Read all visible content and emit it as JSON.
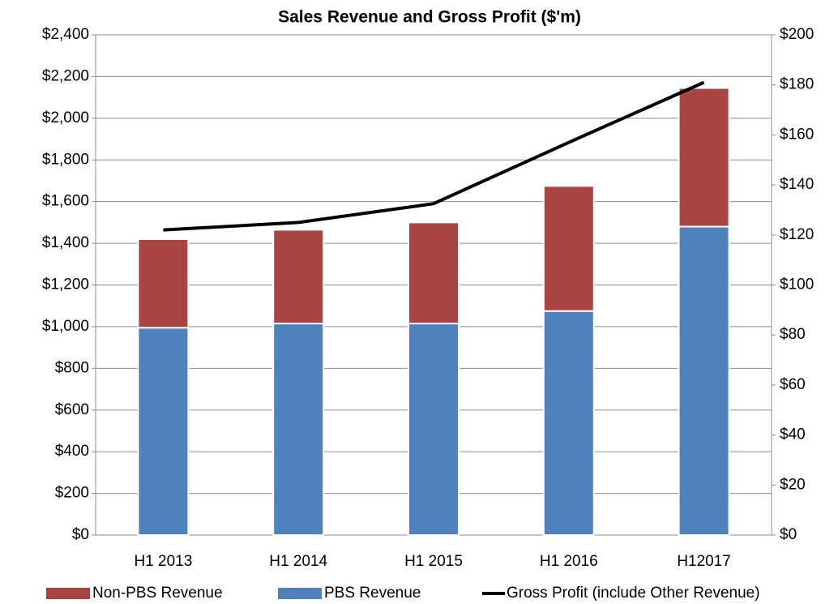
{
  "chart_data": {
    "type": "bar",
    "title": "Sales Revenue and Gross Profit ($'m)",
    "categories": [
      "H1 2013",
      "H1 2014",
      "H1 2015",
      "H1 2016",
      "H12017"
    ],
    "series": [
      {
        "name": "Non-PBS Revenue",
        "color": "#a84543",
        "values": [
          425,
          450,
          485,
          600,
          665
        ]
      },
      {
        "name": "PBS Revenue",
        "color": "#4f81bd",
        "values": [
          995,
          1015,
          1015,
          1075,
          1480
        ]
      },
      {
        "name": "Gross Profit (include Other Revenue)",
        "color": "#000000",
        "type": "line",
        "axis": "y2",
        "values": [
          122,
          125,
          132.5,
          157,
          181
        ]
      }
    ],
    "ylim": [
      0,
      2400
    ],
    "yticks": [
      {
        "value": 0,
        "label": "$0"
      },
      {
        "value": 200,
        "label": "$200"
      },
      {
        "value": 400,
        "label": "$400"
      },
      {
        "value": 600,
        "label": "$600"
      },
      {
        "value": 800,
        "label": "$800"
      },
      {
        "value": 1000,
        "label": "$1,000"
      },
      {
        "value": 1200,
        "label": "$1,200"
      },
      {
        "value": 1400,
        "label": "$1,400"
      },
      {
        "value": 1600,
        "label": "$1,600"
      },
      {
        "value": 1800,
        "label": "$1,800"
      },
      {
        "value": 2000,
        "label": "$2,000"
      },
      {
        "value": 2200,
        "label": "$2,200"
      },
      {
        "value": 2400,
        "label": "$2,400"
      }
    ],
    "y2lim": [
      0,
      200
    ],
    "y2ticks": [
      {
        "value": 0,
        "label": "$0"
      },
      {
        "value": 20,
        "label": "$20"
      },
      {
        "value": 40,
        "label": "$40"
      },
      {
        "value": 60,
        "label": "$60"
      },
      {
        "value": 80,
        "label": "$80"
      },
      {
        "value": 100,
        "label": "$100"
      },
      {
        "value": 120,
        "label": "$120"
      },
      {
        "value": 140,
        "label": "$140"
      },
      {
        "value": 160,
        "label": "$160"
      },
      {
        "value": 180,
        "label": "$180"
      },
      {
        "value": 200,
        "label": "$200"
      }
    ],
    "grid": true,
    "stacked": true,
    "legend": "bottom"
  }
}
